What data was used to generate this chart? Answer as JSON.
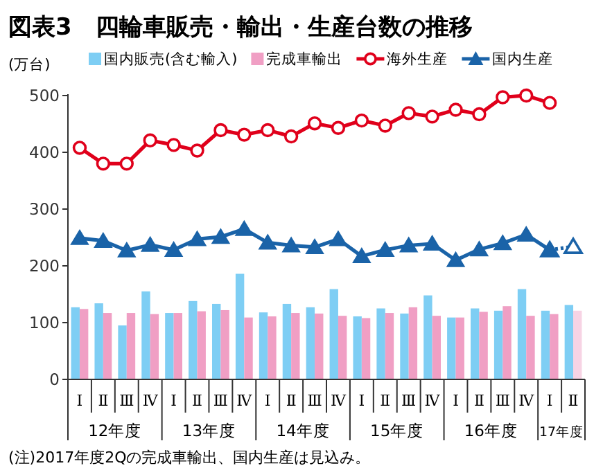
{
  "chart_data": {
    "type": "bar",
    "title": "図表3　四輪車販売・輸出・生産台数の推移",
    "ylabel": "(万台)",
    "categories": [
      "Ⅰ",
      "Ⅱ",
      "Ⅲ",
      "Ⅳ",
      "Ⅰ",
      "Ⅱ",
      "Ⅲ",
      "Ⅳ",
      "Ⅰ",
      "Ⅱ",
      "Ⅲ",
      "Ⅳ",
      "Ⅰ",
      "Ⅱ",
      "Ⅲ",
      "Ⅳ",
      "Ⅰ",
      "Ⅱ",
      "Ⅲ",
      "Ⅳ",
      "Ⅰ",
      "Ⅱ"
    ],
    "series": [
      {
        "name": "国内販売(含む輸入)",
        "color": "#7ecef4",
        "values": [
          127,
          134,
          95,
          155,
          117,
          138,
          133,
          186,
          118,
          133,
          127,
          159,
          111,
          125,
          116,
          148,
          109,
          125,
          121,
          159,
          121,
          131
        ]
      },
      {
        "name": "完成車輸出",
        "color": "#f09fc4",
        "colors": [
          "#f09fc4",
          "#f09fc4",
          "#f09fc4",
          "#f09fc4",
          "#f09fc4",
          "#f09fc4",
          "#f09fc4",
          "#f09fc4",
          "#f09fc4",
          "#f09fc4",
          "#f09fc4",
          "#f09fc4",
          "#f09fc4",
          "#f09fc4",
          "#f09fc4",
          "#f09fc4",
          "#f09fc4",
          "#f09fc4",
          "#f09fc4",
          "#f09fc4",
          "#f09fc4",
          "#f7d3e4"
        ],
        "values": [
          124,
          117,
          117,
          115,
          117,
          120,
          122,
          109,
          111,
          117,
          116,
          112,
          108,
          117,
          127,
          112,
          109,
          119,
          129,
          112,
          115,
          121
        ]
      },
      {
        "name": "海外生産",
        "type": "line",
        "color": "#e0001b",
        "marker": "circle",
        "line_style": "solid",
        "values": [
          408,
          380,
          380,
          421,
          413,
          403,
          439,
          431,
          439,
          428,
          451,
          443,
          456,
          447,
          469,
          463,
          475,
          467,
          497,
          500,
          487,
          null
        ]
      },
      {
        "name": "国内生産",
        "type": "line",
        "color": "#1a63a8",
        "marker": "triangle",
        "line_style": "solid",
        "values": [
          249,
          244,
          227,
          237,
          228,
          247,
          251,
          265,
          241,
          236,
          233,
          247,
          217,
          228,
          236,
          239,
          210,
          229,
          240,
          255,
          228,
          null
        ]
      },
      {
        "type": "line",
        "color": "#1a63a8",
        "marker": "triangle",
        "line_style": "dotted",
        "values": [
          null,
          null,
          null,
          null,
          null,
          null,
          null,
          null,
          null,
          null,
          null,
          null,
          null,
          null,
          null,
          null,
          null,
          null,
          null,
          null,
          228,
          234
        ]
      }
    ],
    "ylim": [
      0,
      500
    ],
    "yticks": [
      0,
      100,
      200,
      300,
      400,
      500
    ],
    "grid": false,
    "legend": "top",
    "annotations": [
      "12年度",
      "13年度",
      "14年度",
      "15年度",
      "16年度",
      "17年度",
      "(注)2017年度2Qの完成車輸出、国内生産は見込み。"
    ]
  }
}
